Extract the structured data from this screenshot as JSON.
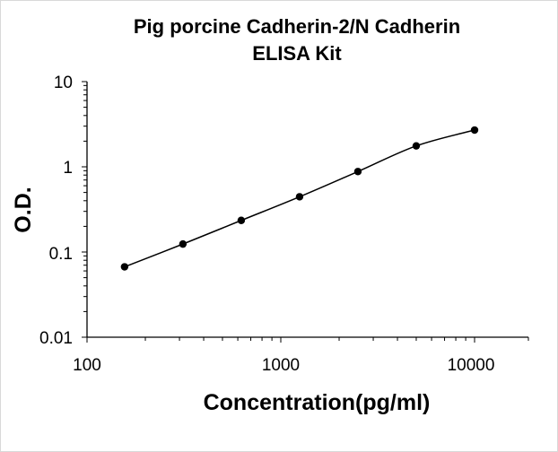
{
  "chart_data": {
    "type": "scatter",
    "title_lines": [
      "Pig porcine Cadherin-2/N Cadherin",
      "ELISA Kit"
    ],
    "xlabel": "Concentration(pg/ml)",
    "ylabel": "O.D.",
    "x_scale": "log",
    "y_scale": "log",
    "xlim": [
      100,
      20000
    ],
    "ylim": [
      0.01,
      10
    ],
    "x_tick_labels": [
      "100",
      "1000",
      "10000"
    ],
    "y_tick_labels": [
      "10",
      "1",
      "0.1",
      "0.01"
    ],
    "grid": false,
    "legend": "none",
    "series": [
      {
        "x": [
          156.25,
          312.5,
          625,
          1250,
          2500,
          5000,
          10000
        ],
        "y": [
          0.067,
          0.124,
          0.235,
          0.445,
          0.88,
          1.76,
          2.7
        ],
        "marker_color": "#000000",
        "line": "smooth fit curve"
      }
    ]
  }
}
